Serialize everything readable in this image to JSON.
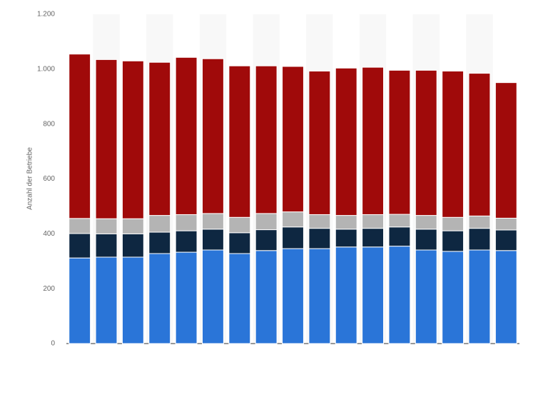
{
  "chart_data": {
    "type": "stacked-bar",
    "y_label": "Anzahl der Betriebe",
    "categories": [
      null,
      null,
      null,
      null,
      null,
      null,
      null,
      null,
      null,
      null,
      null,
      null,
      null,
      null,
      null,
      null,
      null
    ],
    "series": [
      {
        "color": "#2a75d8",
        "values": [
          312,
          315,
          315,
          328,
          333,
          341,
          328,
          339,
          346,
          346,
          352,
          352,
          355,
          341,
          336,
          341,
          339
        ]
      },
      {
        "color": "#0e2741",
        "values": [
          89,
          85,
          85,
          78,
          78,
          76,
          76,
          76,
          79,
          74,
          65,
          68,
          70,
          76,
          75,
          79,
          75
        ]
      },
      {
        "color": "#b4b4b4",
        "values": [
          55,
          55,
          55,
          61,
          59,
          57,
          56,
          59,
          55,
          50,
          50,
          50,
          46,
          50,
          49,
          45,
          43
        ]
      },
      {
        "color": "#a00a0a",
        "values": [
          599,
          580,
          575,
          558,
          573,
          564,
          552,
          538,
          530,
          523,
          537,
          537,
          525,
          529,
          533,
          520,
          494
        ]
      }
    ],
    "ylim": [
      0,
      1200
    ],
    "yticks": [
      0,
      200,
      400,
      600,
      800,
      {
        "value": 1000,
        "label": "1.000"
      },
      {
        "value": 1200,
        "label": "1.200"
      }
    ],
    "grid": true
  }
}
